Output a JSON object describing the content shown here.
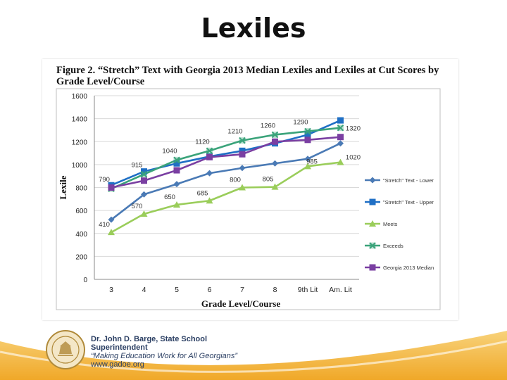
{
  "slide": {
    "title": "Lexiles"
  },
  "figure": {
    "caption": "Figure 2.  “Stretch” Text with Georgia 2013 Median Lexiles and Lexiles at Cut Scores by Grade Level/Course"
  },
  "footer": {
    "line1": "Dr. John D. Barge, State School",
    "line2": "Superintendent",
    "line3": "“Making Education Work for All Georgians”",
    "line4": "www.gadoe.org"
  },
  "colors": {
    "stretch_lower": "#4a7ab5",
    "stretch_upper": "#1f6fc5",
    "meets": "#9acd5a",
    "exceeds": "#3aa37a",
    "median": "#7a3fa2",
    "footer_wave": "#f2b134",
    "footer_text": "#2b3f63"
  },
  "chart_data": {
    "type": "line",
    "xlabel": "Grade Level/Course",
    "ylabel": "Lexile",
    "ylim": [
      0,
      1600
    ],
    "yticks": [
      0,
      200,
      400,
      600,
      800,
      1000,
      1200,
      1400,
      1600
    ],
    "categories": [
      "3",
      "4",
      "5",
      "6",
      "7",
      "8",
      "9th Lit",
      "Am. Lit"
    ],
    "grid": "horizontal",
    "legend_position": "right",
    "series": [
      {
        "name": "\"Stretch\" Text - Lower",
        "marker": "diamond",
        "color": "#4a7ab5",
        "values": [
          520,
          740,
          830,
          925,
          970,
          1010,
          1050,
          1185
        ]
      },
      {
        "name": "\"Stretch\" Text - Upper",
        "marker": "square",
        "color": "#1f6fc5",
        "values": [
          820,
          940,
          1010,
          1070,
          1120,
          1185,
          1260,
          1385
        ]
      },
      {
        "name": "Meets",
        "marker": "triangle",
        "color": "#9acd5a",
        "values": [
          410,
          570,
          650,
          685,
          800,
          805,
          985,
          1020
        ]
      },
      {
        "name": "Exceeds",
        "marker": "x",
        "color": "#3aa37a",
        "values": [
          790,
          915,
          1040,
          1120,
          1210,
          1260,
          1290,
          1320
        ]
      },
      {
        "name": "Georgia 2013 Median",
        "marker": "square",
        "color": "#7a3fa2",
        "values": [
          800,
          860,
          950,
          1065,
          1090,
          1200,
          1215,
          1240
        ]
      }
    ],
    "data_labels": [
      {
        "series": "Meets",
        "index": 0,
        "text": "410"
      },
      {
        "series": "Meets",
        "index": 1,
        "text": "570"
      },
      {
        "series": "Meets",
        "index": 2,
        "text": "650"
      },
      {
        "series": "Meets",
        "index": 3,
        "text": "685"
      },
      {
        "series": "Meets",
        "index": 4,
        "text": "800"
      },
      {
        "series": "Meets",
        "index": 5,
        "text": "805"
      },
      {
        "series": "Meets",
        "index": 6,
        "text": "985"
      },
      {
        "series": "Meets",
        "index": 7,
        "text": "1020"
      },
      {
        "series": "Exceeds",
        "index": 0,
        "text": "790"
      },
      {
        "series": "Exceeds",
        "index": 1,
        "text": "915"
      },
      {
        "series": "Exceeds",
        "index": 2,
        "text": "1040"
      },
      {
        "series": "Exceeds",
        "index": 3,
        "text": "1120"
      },
      {
        "series": "Exceeds",
        "index": 4,
        "text": "1210"
      },
      {
        "series": "Exceeds",
        "index": 5,
        "text": "1260"
      },
      {
        "series": "Exceeds",
        "index": 6,
        "text": "1290"
      },
      {
        "series": "Exceeds",
        "index": 7,
        "text": "1320"
      }
    ]
  }
}
